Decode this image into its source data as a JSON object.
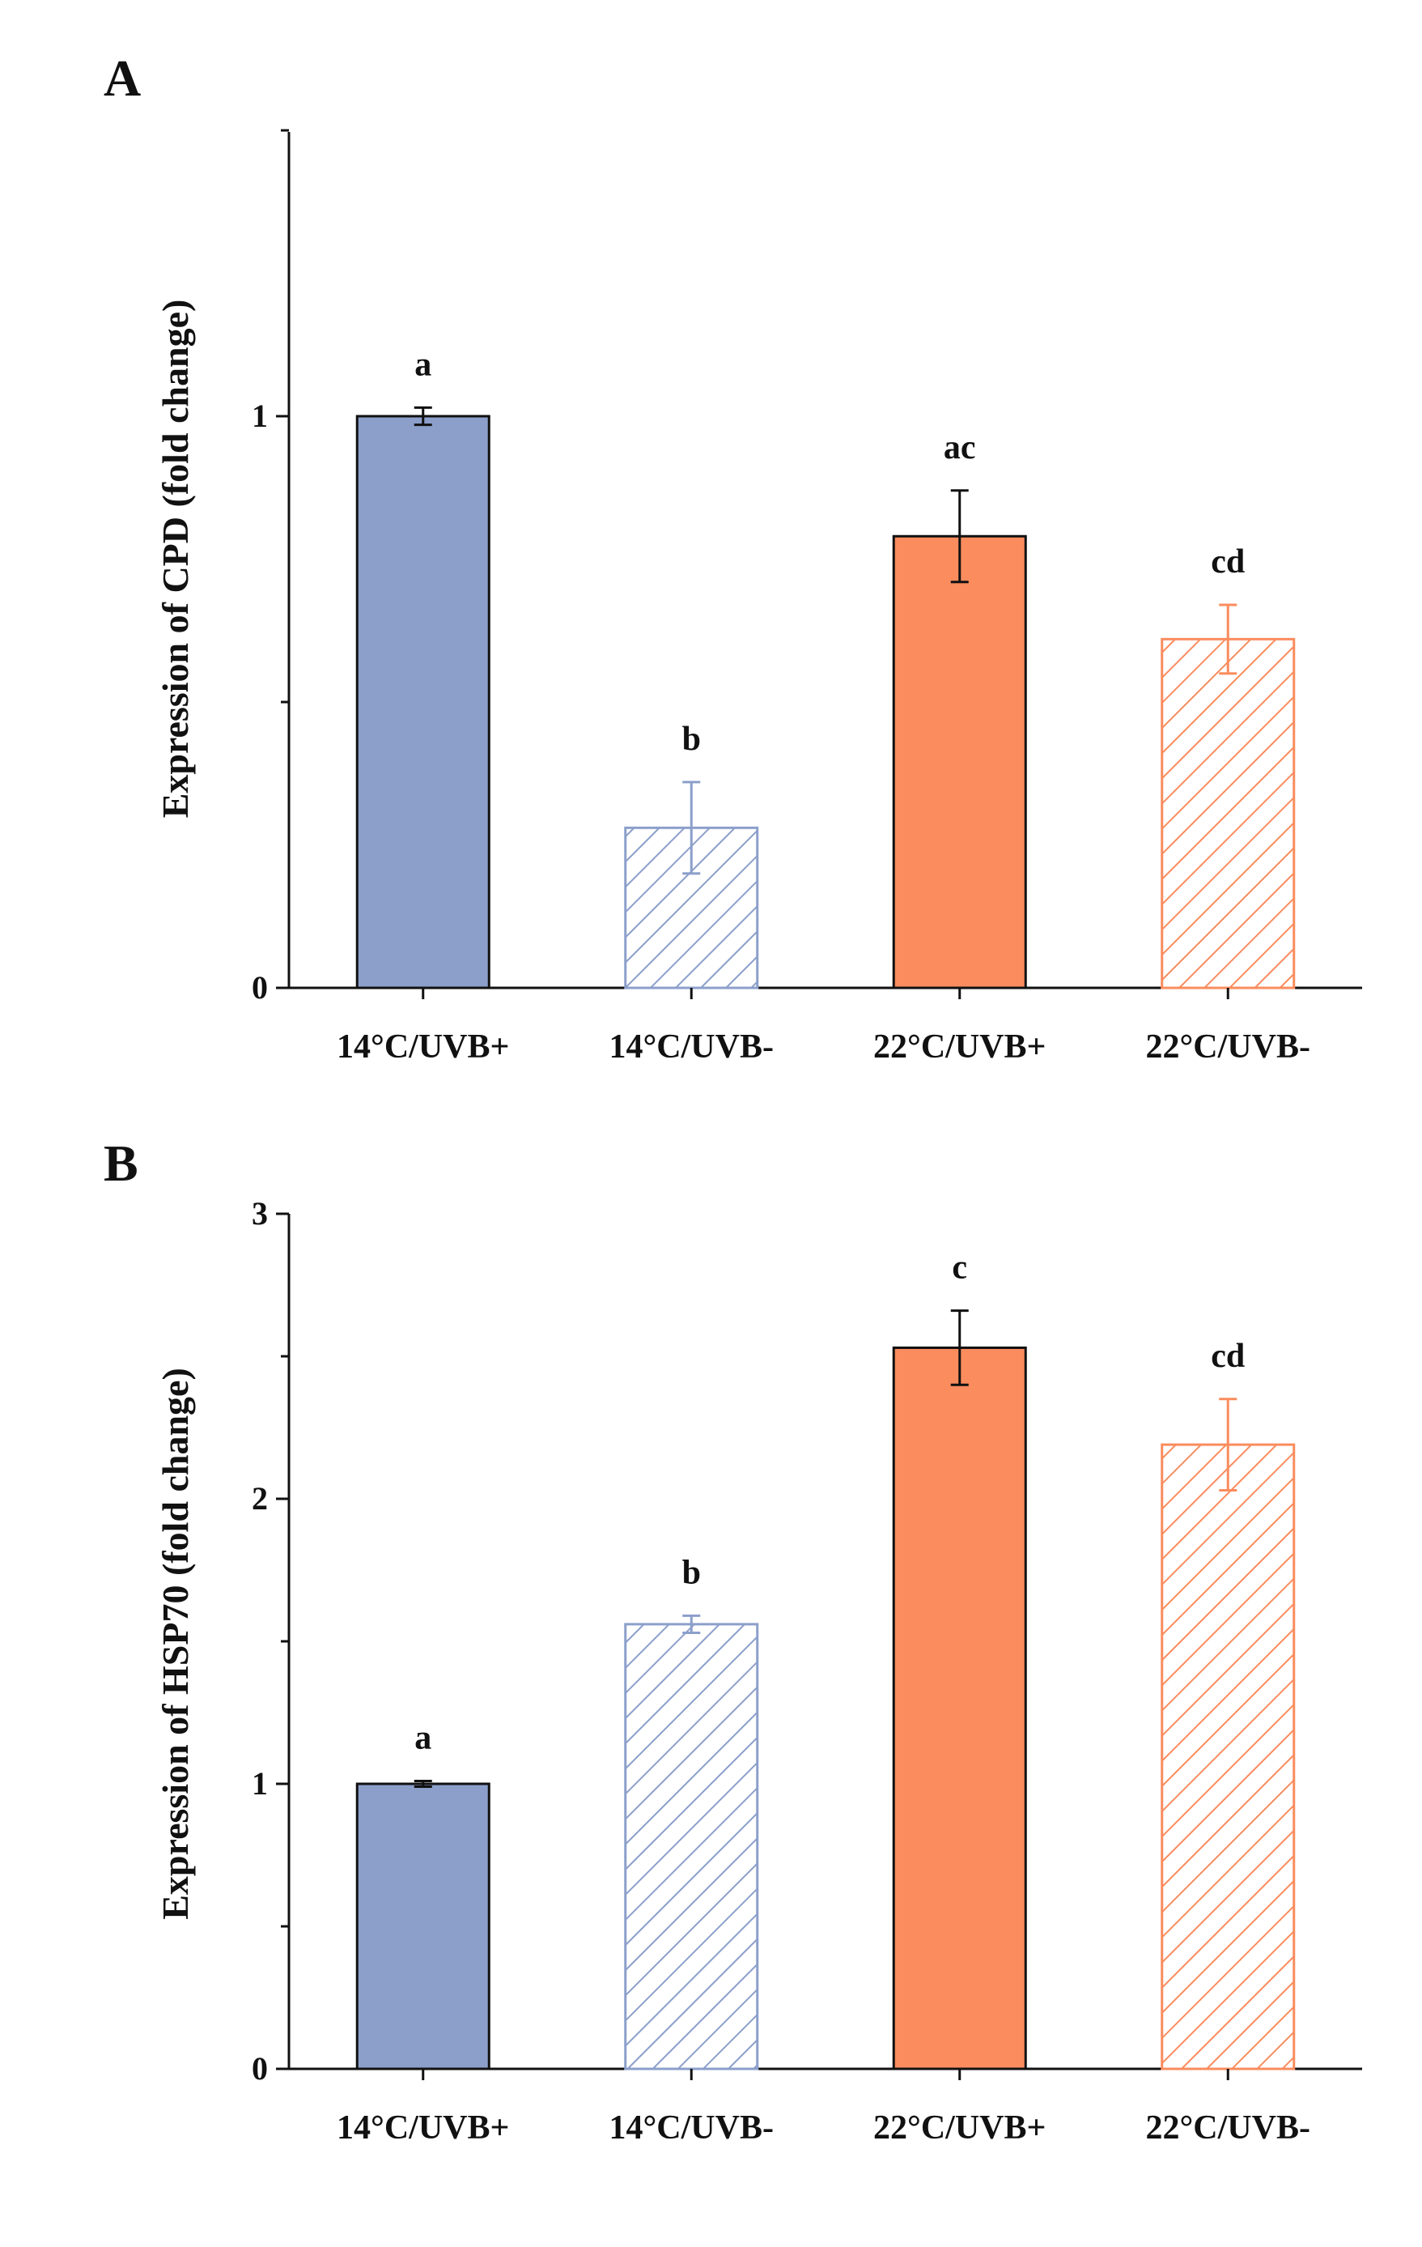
{
  "colors": {
    "blue": "#8c9fcb",
    "orange": "#fa8c5e",
    "axis": "#111111",
    "black": "#111111"
  },
  "chart_data": [
    {
      "type": "bar",
      "panel": "A",
      "ylabel": "Expression of CPD (fold change)",
      "xlabel": "",
      "ylim": [
        0,
        1.5
      ],
      "yticks": [
        0,
        0.5,
        1,
        1.5
      ],
      "ytick_labels": [
        "0",
        "",
        "1",
        ""
      ],
      "grid": false,
      "categories": [
        "14°C/UVB+",
        "14°C/UVB-",
        "22°C/UVB+",
        "22°C/UVB-"
      ],
      "values": [
        1.0,
        0.28,
        0.79,
        0.61
      ],
      "errors": [
        0.015,
        0.08,
        0.08,
        0.06
      ],
      "significance": [
        "a",
        "b",
        "ac",
        "cd"
      ],
      "fill": [
        "solid",
        "hatched",
        "solid",
        "hatched"
      ],
      "color_keys": [
        "blue",
        "blue",
        "orange",
        "orange"
      ],
      "errorbar_color_keys": [
        "black",
        "blue",
        "black",
        "orange"
      ]
    },
    {
      "type": "bar",
      "panel": "B",
      "ylabel": "Expression of HSP70 (fold change)",
      "xlabel": "",
      "ylim": [
        0,
        3
      ],
      "yticks": [
        0,
        0.5,
        1,
        1.5,
        2,
        2.5,
        3
      ],
      "ytick_labels": [
        "0",
        "",
        "1",
        "",
        "2",
        "",
        "3"
      ],
      "grid": false,
      "categories": [
        "14°C/UVB+",
        "14°C/UVB-",
        "22°C/UVB+",
        "22°C/UVB-"
      ],
      "values": [
        1.0,
        1.56,
        2.53,
        2.19
      ],
      "errors": [
        0.01,
        0.03,
        0.13,
        0.16
      ],
      "significance": [
        "a",
        "b",
        "c",
        "cd"
      ],
      "fill": [
        "solid",
        "hatched",
        "solid",
        "hatched"
      ],
      "color_keys": [
        "blue",
        "blue",
        "orange",
        "orange"
      ],
      "errorbar_color_keys": [
        "black",
        "blue",
        "black",
        "orange"
      ]
    }
  ]
}
